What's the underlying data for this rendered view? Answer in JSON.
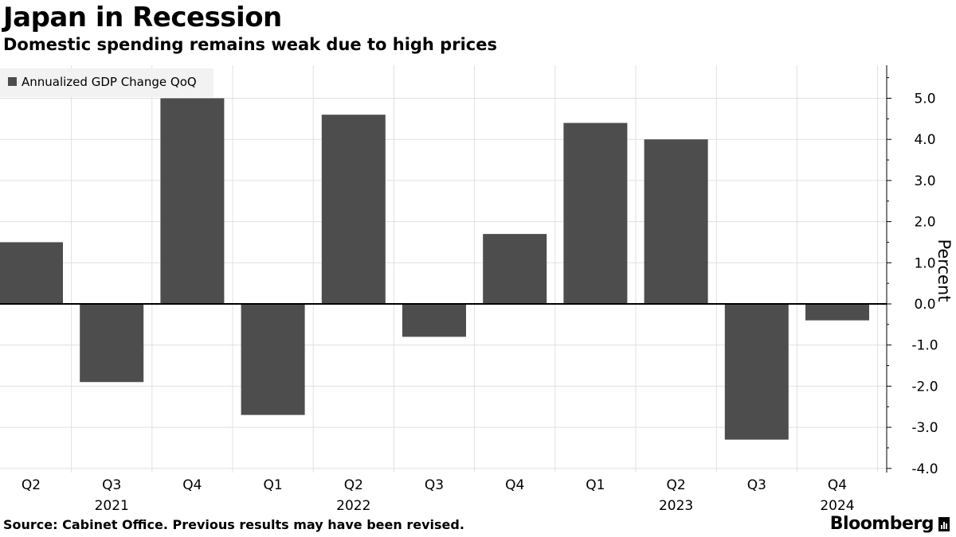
{
  "header": {
    "title": "Japan in Recession",
    "subtitle": "Domestic spending remains weak due to high prices"
  },
  "footer": {
    "source": "Source: Cabinet Office. Previous results may have been revised.",
    "brand": "Bloomberg"
  },
  "colors": {
    "bar": "#4d4d4d",
    "grid": "#e0e0e0",
    "legend_bg": "#f2f2f2"
  },
  "chart_data": {
    "type": "bar",
    "title": "Japan in Recession",
    "subtitle": "Domestic spending remains weak due to high prices",
    "ylabel": "Percent",
    "ylim": [
      -4.0,
      5.5
    ],
    "yticks": [
      "5.0",
      "4.0",
      "3.0",
      "2.0",
      "1.0",
      "0.0",
      "-1.0",
      "-2.0",
      "-3.0",
      "-4.0"
    ],
    "grid": true,
    "legend": "Annualized GDP Change QoQ",
    "legend_position": "top-left",
    "categories": [
      "Q2",
      "Q3",
      "Q4",
      "Q1",
      "Q2",
      "Q3",
      "Q4",
      "Q1",
      "Q2",
      "Q3",
      "Q4"
    ],
    "year_labels": [
      {
        "year": "2021",
        "at_index": 1
      },
      {
        "year": "2022",
        "at_index": 4
      },
      {
        "year": "2023",
        "at_index": 8
      },
      {
        "year": "2024",
        "at_index": 10
      }
    ],
    "series": [
      {
        "name": "Annualized GDP Change QoQ",
        "values": [
          1.5,
          -1.9,
          5.0,
          -2.7,
          4.6,
          -0.8,
          1.7,
          4.4,
          4.0,
          -3.3,
          -0.4
        ]
      }
    ]
  }
}
